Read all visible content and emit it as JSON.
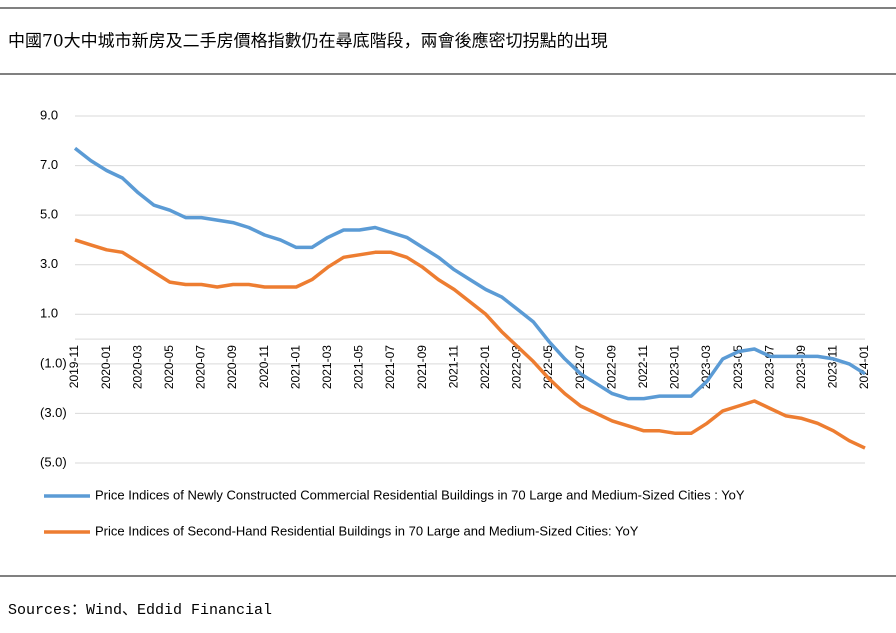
{
  "chart_data": {
    "type": "line",
    "title": "中國70大中城市新房及二手房價格指數仍在尋底階段，兩會後應密切拐點的出現",
    "source": "Sources：Wind、Eddid Financial",
    "categories": [
      "2019-11",
      null,
      "2020-01",
      null,
      "2020-03",
      null,
      "2020-05",
      null,
      "2020-07",
      null,
      "2020-09",
      null,
      "2020-11",
      null,
      "2021-01",
      null,
      "2021-03",
      null,
      "2021-05",
      null,
      "2021-07",
      null,
      "2021-09",
      null,
      "2021-11",
      null,
      "2022-01",
      null,
      "2022-03",
      null,
      "2022-05",
      null,
      "2022-07",
      null,
      "2022-09",
      null,
      "2022-11",
      null,
      "2023-01",
      null,
      "2023-03",
      null,
      "2023-05",
      null,
      "2023-07",
      null,
      "2023-09",
      null,
      "2023-11",
      null,
      "2024-01"
    ],
    "series": [
      {
        "name": "Price Indices of Newly Constructed Commercial Residential Buildings in 70 Large and Medium-Sized Cities : YoY",
        "color": "#5b9bd5",
        "values": [
          7.7,
          7.2,
          6.8,
          6.5,
          5.9,
          5.4,
          5.2,
          4.9,
          4.9,
          4.8,
          4.7,
          4.5,
          4.2,
          4.0,
          3.7,
          3.7,
          4.1,
          4.4,
          4.4,
          4.5,
          4.3,
          4.1,
          3.7,
          3.3,
          2.8,
          2.4,
          2.0,
          1.7,
          1.2,
          0.7,
          -0.1,
          -0.8,
          -1.4,
          -1.8,
          -2.2,
          -2.4,
          -2.4,
          -2.3,
          -2.3,
          -2.3,
          -1.7,
          -0.8,
          -0.5,
          -0.4,
          -0.7,
          -0.7,
          -0.7,
          -0.7,
          -0.8,
          -1.0,
          -1.4
        ]
      },
      {
        "name": "Price Indices of Second-Hand Residential Buildings in 70 Large and Medium-Sized Cities: YoY",
        "color": "#ed7d31",
        "values": [
          4.0,
          3.8,
          3.6,
          3.5,
          3.1,
          2.7,
          2.3,
          2.2,
          2.2,
          2.1,
          2.2,
          2.2,
          2.1,
          2.1,
          2.1,
          2.4,
          2.9,
          3.3,
          3.4,
          3.5,
          3.5,
          3.3,
          2.9,
          2.4,
          2.0,
          1.5,
          1.0,
          0.3,
          -0.3,
          -0.9,
          -1.6,
          -2.2,
          -2.7,
          -3.0,
          -3.3,
          -3.5,
          -3.7,
          -3.7,
          -3.8,
          -3.8,
          -3.4,
          -2.9,
          -2.7,
          -2.5,
          -2.8,
          -3.1,
          -3.2,
          -3.4,
          -3.7,
          -4.1,
          -4.4
        ]
      }
    ],
    "ylim": [
      -5,
      9
    ],
    "yticks": [
      {
        "value": 9,
        "label": "9.0"
      },
      {
        "value": 7,
        "label": "7.0"
      },
      {
        "value": 5,
        "label": "5.0"
      },
      {
        "value": 3,
        "label": "3.0"
      },
      {
        "value": 1,
        "label": "1.0"
      },
      {
        "value": -1,
        "label": "(1.0)"
      },
      {
        "value": -3,
        "label": "(3.0)"
      },
      {
        "value": -5,
        "label": "(5.0)"
      }
    ],
    "grid": true,
    "negative_label_color": "#c00000",
    "legend": "bottom"
  }
}
